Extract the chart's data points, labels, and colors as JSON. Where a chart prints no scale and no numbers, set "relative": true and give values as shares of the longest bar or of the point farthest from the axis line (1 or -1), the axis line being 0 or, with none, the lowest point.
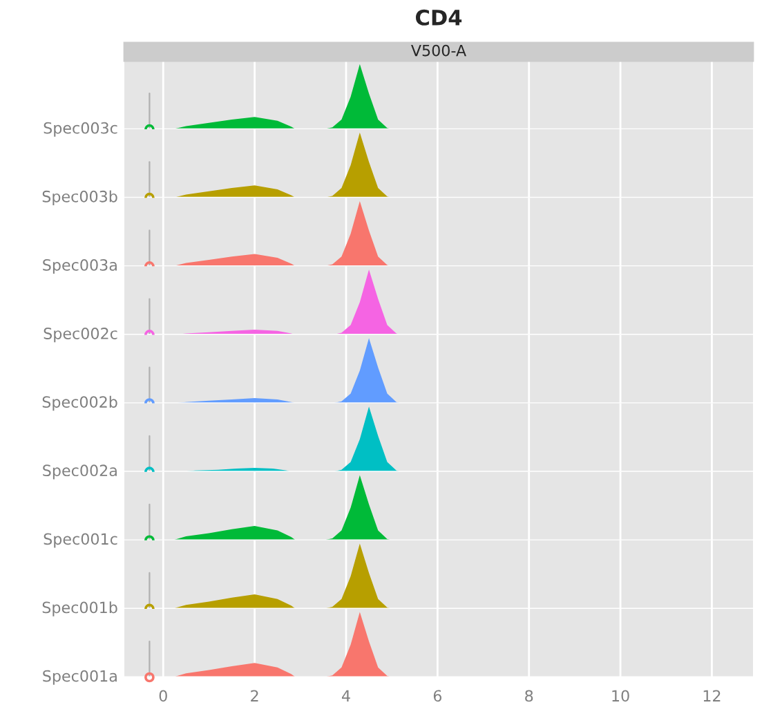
{
  "chart_data": [
    {
      "type": "area",
      "title": "CD4",
      "subtitle": "V500-A",
      "ylabel": "Spec003c",
      "relative": true,
      "xlim": [
        -0.85,
        12.9
      ],
      "xticks": [
        0,
        2,
        4,
        6,
        8,
        10,
        12
      ],
      "grid": "x",
      "tick_labels": false,
      "series": [
        {
          "color": "#00ba38",
          "x": [
            0.2,
            0.5,
            1,
            1.5,
            2,
            2.5,
            2.8,
            2.9,
            3.5,
            3.7,
            3.9,
            4.1,
            4.3,
            4.5,
            4.7,
            4.9,
            5.0
          ],
          "values": [
            0,
            0.05,
            0.1,
            0.15,
            0.19,
            0.13,
            0.04,
            0,
            0,
            0.03,
            0.15,
            0.5,
            1,
            0.55,
            0.15,
            0.02,
            0
          ]
        },
        {
          "type": "line",
          "color": "#b0b0b0",
          "x": [
            -0.3,
            -0.3
          ],
          "values": [
            0,
            0.55
          ]
        },
        {
          "type": "scatter",
          "color": "#00ba38",
          "x": [
            -0.3
          ],
          "values": [
            0
          ]
        }
      ]
    },
    {
      "type": "area",
      "ylabel": "Spec003b",
      "relative": true,
      "xlim": [
        -0.85,
        12.9
      ],
      "xticks": [
        0,
        2,
        4,
        6,
        8,
        10,
        12
      ],
      "grid": "x",
      "tick_labels": false,
      "series": [
        {
          "color": "#b79f00",
          "x": [
            0.2,
            0.5,
            1,
            1.5,
            2,
            2.5,
            2.8,
            2.9,
            3.5,
            3.7,
            3.9,
            4.1,
            4.3,
            4.5,
            4.7,
            4.9,
            5.0
          ],
          "values": [
            0,
            0.05,
            0.1,
            0.15,
            0.19,
            0.13,
            0.04,
            0,
            0,
            0.03,
            0.15,
            0.5,
            1,
            0.55,
            0.15,
            0.02,
            0
          ]
        },
        {
          "type": "line",
          "color": "#b0b0b0",
          "x": [
            -0.3,
            -0.3
          ],
          "values": [
            0,
            0.55
          ]
        },
        {
          "type": "scatter",
          "color": "#b79f00",
          "x": [
            -0.3
          ],
          "values": [
            0
          ]
        }
      ]
    },
    {
      "type": "area",
      "ylabel": "Spec003a",
      "relative": true,
      "xlim": [
        -0.85,
        12.9
      ],
      "xticks": [
        0,
        2,
        4,
        6,
        8,
        10,
        12
      ],
      "grid": "x",
      "tick_labels": false,
      "series": [
        {
          "color": "#f8766d",
          "x": [
            0.2,
            0.5,
            1,
            1.5,
            2,
            2.5,
            2.8,
            2.9,
            3.5,
            3.7,
            3.9,
            4.1,
            4.3,
            4.5,
            4.7,
            4.9,
            5.0
          ],
          "values": [
            0,
            0.05,
            0.1,
            0.15,
            0.19,
            0.13,
            0.04,
            0,
            0,
            0.03,
            0.15,
            0.5,
            1,
            0.55,
            0.15,
            0.02,
            0
          ]
        },
        {
          "type": "line",
          "color": "#b0b0b0",
          "x": [
            -0.3,
            -0.3
          ],
          "values": [
            0,
            0.55
          ]
        },
        {
          "type": "scatter",
          "color": "#f8766d",
          "x": [
            -0.3
          ],
          "values": [
            0
          ]
        }
      ]
    },
    {
      "type": "area",
      "ylabel": "Spec002c",
      "relative": true,
      "xlim": [
        -0.85,
        12.9
      ],
      "xticks": [
        0,
        2,
        4,
        6,
        8,
        10,
        12
      ],
      "grid": "x",
      "tick_labels": false,
      "series": [
        {
          "color": "#f564e3",
          "x": [
            0.2,
            0.5,
            1,
            1.5,
            2,
            2.5,
            2.8,
            2.9,
            3.7,
            3.9,
            4.1,
            4.3,
            4.5,
            4.7,
            4.9,
            5.1,
            5.2
          ],
          "values": [
            0,
            0.02,
            0.04,
            0.06,
            0.08,
            0.06,
            0.02,
            0,
            0,
            0.03,
            0.15,
            0.5,
            1,
            0.55,
            0.15,
            0.02,
            0
          ]
        },
        {
          "type": "line",
          "color": "#b0b0b0",
          "x": [
            -0.3,
            -0.3
          ],
          "values": [
            0,
            0.55
          ]
        },
        {
          "type": "scatter",
          "color": "#f564e3",
          "x": [
            -0.3
          ],
          "values": [
            0
          ]
        }
      ]
    },
    {
      "type": "area",
      "ylabel": "Spec002b",
      "relative": true,
      "xlim": [
        -0.85,
        12.9
      ],
      "xticks": [
        0,
        2,
        4,
        6,
        8,
        10,
        12
      ],
      "grid": "x",
      "tick_labels": false,
      "series": [
        {
          "color": "#619cff",
          "x": [
            0.2,
            0.5,
            1,
            1.5,
            2,
            2.5,
            2.8,
            2.9,
            3.7,
            3.9,
            4.1,
            4.3,
            4.5,
            4.7,
            4.9,
            5.1,
            5.2
          ],
          "values": [
            0,
            0.02,
            0.04,
            0.06,
            0.08,
            0.06,
            0.02,
            0,
            0,
            0.03,
            0.15,
            0.5,
            1,
            0.55,
            0.15,
            0.02,
            0
          ]
        },
        {
          "type": "line",
          "color": "#b0b0b0",
          "x": [
            -0.3,
            -0.3
          ],
          "values": [
            0,
            0.55
          ]
        },
        {
          "type": "scatter",
          "color": "#619cff",
          "x": [
            -0.3
          ],
          "values": [
            0
          ]
        }
      ]
    },
    {
      "type": "area",
      "ylabel": "Spec002a",
      "relative": true,
      "xlim": [
        -0.85,
        12.9
      ],
      "xticks": [
        0,
        2,
        4,
        6,
        8,
        10,
        12
      ],
      "grid": "x",
      "tick_labels": false,
      "series": [
        {
          "color": "#00bfc4",
          "x": [
            0.4,
            0.7,
            1.2,
            1.6,
            2,
            2.4,
            2.7,
            2.8,
            3.7,
            3.9,
            4.1,
            4.3,
            4.5,
            4.7,
            4.9,
            5.1,
            5.2
          ],
          "values": [
            0,
            0.02,
            0.03,
            0.05,
            0.06,
            0.05,
            0.02,
            0,
            0,
            0.03,
            0.15,
            0.5,
            1,
            0.55,
            0.15,
            0.02,
            0
          ]
        },
        {
          "type": "line",
          "color": "#b0b0b0",
          "x": [
            -0.3,
            -0.3
          ],
          "values": [
            0,
            0.55
          ]
        },
        {
          "type": "scatter",
          "color": "#00bfc4",
          "x": [
            -0.3
          ],
          "values": [
            0
          ]
        }
      ]
    },
    {
      "type": "area",
      "ylabel": "Spec001c",
      "relative": true,
      "xlim": [
        -0.85,
        12.9
      ],
      "xticks": [
        0,
        2,
        4,
        6,
        8,
        10,
        12
      ],
      "grid": "x",
      "tick_labels": false,
      "series": [
        {
          "color": "#00ba38",
          "x": [
            0.2,
            0.5,
            1,
            1.5,
            2,
            2.5,
            2.8,
            2.9,
            3.5,
            3.7,
            3.9,
            4.1,
            4.3,
            4.5,
            4.7,
            4.9,
            5.0
          ],
          "values": [
            0,
            0.06,
            0.11,
            0.17,
            0.22,
            0.15,
            0.05,
            0,
            0,
            0.03,
            0.15,
            0.5,
            1,
            0.55,
            0.15,
            0.02,
            0
          ]
        },
        {
          "type": "line",
          "color": "#b0b0b0",
          "x": [
            -0.3,
            -0.3
          ],
          "values": [
            0,
            0.55
          ]
        },
        {
          "type": "scatter",
          "color": "#00ba38",
          "x": [
            -0.3
          ],
          "values": [
            0
          ]
        }
      ]
    },
    {
      "type": "area",
      "ylabel": "Spec001b",
      "relative": true,
      "xlim": [
        -0.85,
        12.9
      ],
      "xticks": [
        0,
        2,
        4,
        6,
        8,
        10,
        12
      ],
      "grid": "x",
      "tick_labels": false,
      "series": [
        {
          "color": "#b79f00",
          "x": [
            0.2,
            0.5,
            1,
            1.5,
            2,
            2.5,
            2.8,
            2.9,
            3.5,
            3.7,
            3.9,
            4.1,
            4.3,
            4.5,
            4.7,
            4.9,
            5.0
          ],
          "values": [
            0,
            0.06,
            0.11,
            0.17,
            0.22,
            0.15,
            0.05,
            0,
            0,
            0.03,
            0.15,
            0.5,
            1,
            0.55,
            0.15,
            0.02,
            0
          ]
        },
        {
          "type": "line",
          "color": "#b0b0b0",
          "x": [
            -0.3,
            -0.3
          ],
          "values": [
            0,
            0.55
          ]
        },
        {
          "type": "scatter",
          "color": "#b79f00",
          "x": [
            -0.3
          ],
          "values": [
            0
          ]
        }
      ]
    },
    {
      "type": "area",
      "ylabel": "Spec001a",
      "relative": true,
      "xlim": [
        -0.85,
        12.9
      ],
      "xticks": [
        0,
        2,
        4,
        6,
        8,
        10,
        12
      ],
      "grid": "x",
      "tick_labels": "x",
      "series": [
        {
          "color": "#f8766d",
          "x": [
            0.2,
            0.5,
            1,
            1.5,
            2,
            2.5,
            2.8,
            2.9,
            3.5,
            3.7,
            3.9,
            4.1,
            4.3,
            4.5,
            4.7,
            4.9,
            5.0
          ],
          "values": [
            0,
            0.06,
            0.11,
            0.17,
            0.22,
            0.15,
            0.05,
            0,
            0,
            0.03,
            0.15,
            0.5,
            1,
            0.55,
            0.15,
            0.02,
            0
          ]
        },
        {
          "type": "line",
          "color": "#b0b0b0",
          "x": [
            -0.3,
            -0.3
          ],
          "values": [
            0,
            0.55
          ]
        },
        {
          "type": "scatter",
          "color": "#f8766d",
          "x": [
            -0.3
          ],
          "values": [
            0
          ]
        }
      ]
    }
  ]
}
